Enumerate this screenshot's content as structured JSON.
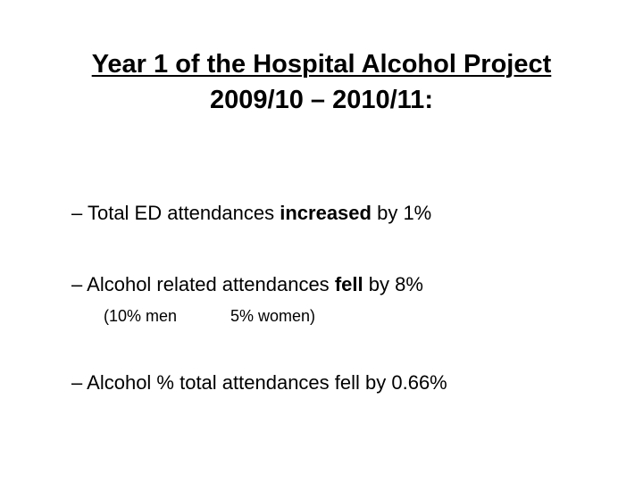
{
  "slide": {
    "title_line1": "Year 1 of the Hospital Alcohol Project",
    "title_line2": "2009/10 – 2010/11:",
    "bullets": [
      {
        "dash": "–",
        "before": "Total ED attendances",
        "emphasis": "increased",
        "after": "by 1%"
      },
      {
        "dash": "–",
        "before": "Alcohol related attendances",
        "emphasis": "fell",
        "after": "by 8%"
      },
      {
        "dash": "–",
        "text": "Alcohol % total attendances fell by 0.66%"
      }
    ],
    "sub_note": {
      "men": "(10% men",
      "women": "5% women)"
    }
  }
}
